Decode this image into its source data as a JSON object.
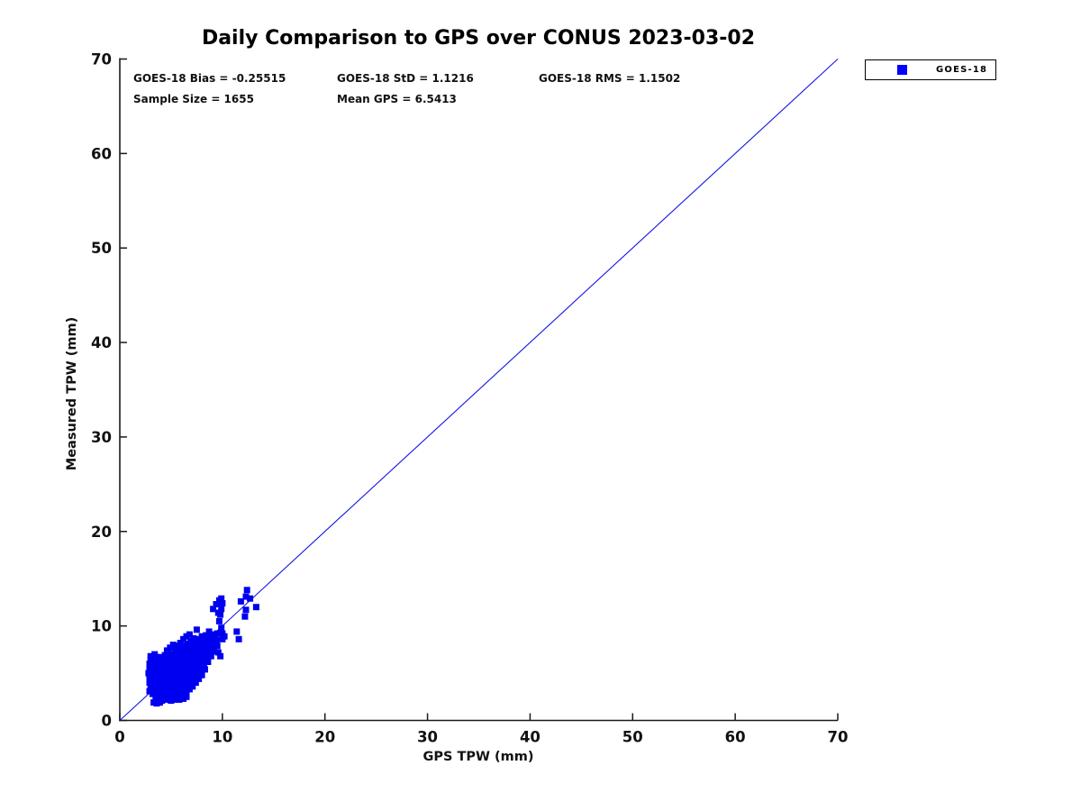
{
  "title": "Daily Comparison to GPS over CONUS 2023-03-02",
  "annotations": {
    "bias": "GOES-18 Bias = -0.25515",
    "std": "GOES-18 StD = 1.1216",
    "rms": "GOES-18 RMS = 1.1502",
    "sample_size": "Sample Size = 1655",
    "mean_gps": "Mean GPS = 6.5413"
  },
  "legend": {
    "position": "top-right-outside",
    "items": [
      {
        "label": "GOES-18",
        "marker": "square",
        "color": "#0000ff"
      }
    ]
  },
  "colors": {
    "marker": "#0000f0",
    "identity_line": "#1414e6",
    "axis": "#1a1a1a",
    "text": "#111111",
    "background": "#ffffff"
  },
  "chart_data": {
    "type": "scatter",
    "title": "Daily Comparison to GPS over CONUS 2023-03-02",
    "xlabel": "GPS TPW (mm)",
    "ylabel": "Measured TPW (mm)",
    "xlim": [
      0,
      70
    ],
    "ylim": [
      0,
      70
    ],
    "xticks": [
      0,
      10,
      20,
      30,
      40,
      50,
      60,
      70
    ],
    "yticks": [
      0,
      10,
      20,
      30,
      40,
      50,
      60,
      70
    ],
    "grid": false,
    "legend_position": "top-right-outside",
    "stats": {
      "bias": -0.25515,
      "std": 1.1216,
      "rms": 1.1502,
      "sample_size": 1655,
      "mean_gps": 6.5413
    },
    "reference_line": {
      "type": "identity",
      "from": [
        0,
        0
      ],
      "to": [
        70,
        70
      ]
    },
    "series": [
      {
        "name": "GOES-18",
        "marker": "square",
        "marker_size_px": 7,
        "color": "#0000f0",
        "points": [
          [
            2.8,
            5.0
          ],
          [
            2.9,
            5.5
          ],
          [
            2.9,
            6.0
          ],
          [
            3.0,
            6.4
          ],
          [
            2.9,
            3.1
          ],
          [
            2.9,
            4.0
          ],
          [
            2.9,
            4.5
          ],
          [
            3.0,
            3.5
          ],
          [
            3.0,
            6.8
          ],
          [
            3.4,
            7.0
          ],
          [
            3.2,
            6.6
          ],
          [
            3.2,
            2.8
          ],
          [
            3.2,
            3.3
          ],
          [
            3.1,
            3.8
          ],
          [
            3.2,
            4.3
          ],
          [
            3.3,
            4.8
          ],
          [
            3.2,
            5.3
          ],
          [
            3.3,
            5.8
          ],
          [
            3.2,
            6.2
          ],
          [
            3.5,
            2.5
          ],
          [
            3.4,
            3.0
          ],
          [
            3.5,
            3.5
          ],
          [
            3.6,
            4.0
          ],
          [
            3.5,
            4.5
          ],
          [
            3.4,
            5.0
          ],
          [
            3.5,
            5.5
          ],
          [
            3.6,
            6.0
          ],
          [
            3.5,
            6.4
          ],
          [
            3.8,
            2.2
          ],
          [
            3.7,
            2.8
          ],
          [
            3.8,
            3.3
          ],
          [
            3.9,
            3.8
          ],
          [
            3.8,
            4.3
          ],
          [
            3.7,
            4.8
          ],
          [
            3.8,
            5.3
          ],
          [
            3.9,
            5.8
          ],
          [
            3.8,
            6.3
          ],
          [
            3.8,
            6.7
          ],
          [
            4.1,
            2.1
          ],
          [
            4.0,
            2.7
          ],
          [
            4.1,
            3.2
          ],
          [
            4.2,
            3.7
          ],
          [
            4.1,
            4.2
          ],
          [
            4.0,
            4.7
          ],
          [
            4.1,
            5.2
          ],
          [
            4.2,
            5.7
          ],
          [
            4.1,
            6.2
          ],
          [
            4.0,
            6.6
          ],
          [
            4.4,
            2.4
          ],
          [
            4.3,
            2.9
          ],
          [
            4.4,
            3.4
          ],
          [
            4.5,
            3.9
          ],
          [
            4.4,
            4.4
          ],
          [
            4.3,
            4.9
          ],
          [
            4.4,
            5.4
          ],
          [
            4.5,
            5.9
          ],
          [
            4.4,
            6.4
          ],
          [
            4.4,
            6.9
          ],
          [
            4.7,
            2.3
          ],
          [
            4.6,
            2.8
          ],
          [
            4.7,
            3.3
          ],
          [
            4.8,
            3.8
          ],
          [
            4.7,
            4.3
          ],
          [
            4.6,
            4.8
          ],
          [
            4.7,
            5.3
          ],
          [
            4.8,
            5.8
          ],
          [
            4.7,
            6.3
          ],
          [
            4.6,
            7.4
          ],
          [
            4.7,
            7.1
          ],
          [
            5.0,
            2.5
          ],
          [
            4.9,
            3.0
          ],
          [
            5.0,
            3.5
          ],
          [
            5.1,
            4.0
          ],
          [
            5.0,
            4.5
          ],
          [
            4.9,
            5.0
          ],
          [
            5.0,
            5.5
          ],
          [
            5.1,
            6.0
          ],
          [
            5.0,
            6.5
          ],
          [
            5.0,
            7.0
          ],
          [
            4.9,
            7.7
          ],
          [
            5.3,
            2.4
          ],
          [
            5.2,
            2.9
          ],
          [
            5.3,
            3.4
          ],
          [
            5.4,
            3.9
          ],
          [
            5.3,
            4.4
          ],
          [
            5.2,
            4.9
          ],
          [
            5.3,
            5.4
          ],
          [
            5.4,
            5.9
          ],
          [
            5.3,
            6.4
          ],
          [
            5.3,
            6.9
          ],
          [
            5.4,
            7.6
          ],
          [
            5.2,
            8.0
          ],
          [
            5.6,
            2.6
          ],
          [
            5.5,
            3.1
          ],
          [
            5.6,
            3.6
          ],
          [
            5.7,
            4.1
          ],
          [
            5.6,
            4.6
          ],
          [
            5.5,
            5.1
          ],
          [
            5.6,
            5.6
          ],
          [
            5.7,
            6.1
          ],
          [
            5.6,
            6.6
          ],
          [
            5.6,
            7.1
          ],
          [
            5.7,
            7.9
          ],
          [
            5.9,
            2.4
          ],
          [
            5.8,
            2.9
          ],
          [
            5.9,
            3.4
          ],
          [
            6.0,
            3.9
          ],
          [
            5.9,
            4.4
          ],
          [
            5.8,
            4.9
          ],
          [
            5.9,
            5.4
          ],
          [
            6.0,
            5.9
          ],
          [
            5.9,
            6.4
          ],
          [
            5.9,
            6.9
          ],
          [
            6.0,
            7.4
          ],
          [
            5.9,
            8.2
          ],
          [
            6.2,
            2.7
          ],
          [
            6.1,
            3.2
          ],
          [
            6.2,
            3.7
          ],
          [
            6.3,
            4.2
          ],
          [
            6.2,
            4.7
          ],
          [
            6.1,
            5.2
          ],
          [
            6.2,
            5.7
          ],
          [
            6.3,
            6.2
          ],
          [
            6.2,
            6.7
          ],
          [
            6.2,
            7.2
          ],
          [
            6.3,
            7.9
          ],
          [
            6.2,
            8.6
          ],
          [
            6.5,
            2.9
          ],
          [
            6.4,
            3.4
          ],
          [
            6.5,
            3.9
          ],
          [
            6.6,
            4.4
          ],
          [
            6.5,
            4.9
          ],
          [
            6.4,
            5.4
          ],
          [
            6.5,
            5.9
          ],
          [
            6.6,
            6.4
          ],
          [
            6.5,
            6.9
          ],
          [
            6.5,
            7.4
          ],
          [
            6.6,
            8.1
          ],
          [
            6.5,
            8.9
          ],
          [
            6.8,
            3.3
          ],
          [
            6.7,
            3.8
          ],
          [
            6.8,
            4.3
          ],
          [
            6.9,
            4.8
          ],
          [
            6.8,
            5.3
          ],
          [
            6.7,
            5.8
          ],
          [
            6.8,
            6.3
          ],
          [
            6.9,
            6.8
          ],
          [
            6.8,
            7.3
          ],
          [
            6.8,
            7.8
          ],
          [
            6.9,
            8.4
          ],
          [
            6.8,
            9.1
          ],
          [
            7.1,
            3.6
          ],
          [
            7.0,
            4.1
          ],
          [
            7.1,
            4.6
          ],
          [
            7.2,
            5.1
          ],
          [
            7.1,
            5.6
          ],
          [
            7.0,
            6.1
          ],
          [
            7.1,
            6.6
          ],
          [
            7.2,
            7.1
          ],
          [
            7.1,
            7.6
          ],
          [
            7.1,
            8.1
          ],
          [
            7.2,
            8.7
          ],
          [
            7.5,
            9.6
          ],
          [
            7.4,
            4.0
          ],
          [
            7.3,
            4.5
          ],
          [
            7.4,
            5.0
          ],
          [
            7.5,
            5.5
          ],
          [
            7.4,
            6.0
          ],
          [
            7.3,
            6.5
          ],
          [
            7.4,
            7.0
          ],
          [
            7.5,
            7.5
          ],
          [
            7.4,
            8.0
          ],
          [
            7.4,
            8.6
          ],
          [
            7.7,
            4.4
          ],
          [
            7.6,
            4.9
          ],
          [
            7.7,
            5.4
          ],
          [
            7.8,
            5.9
          ],
          [
            7.7,
            6.4
          ],
          [
            7.6,
            6.9
          ],
          [
            7.7,
            7.4
          ],
          [
            7.8,
            7.9
          ],
          [
            7.7,
            8.5
          ],
          [
            8.0,
            4.8
          ],
          [
            7.9,
            5.3
          ],
          [
            8.0,
            5.8
          ],
          [
            8.1,
            6.3
          ],
          [
            8.0,
            6.8
          ],
          [
            7.9,
            7.3
          ],
          [
            8.0,
            7.8
          ],
          [
            8.1,
            8.3
          ],
          [
            8.0,
            8.9
          ],
          [
            8.3,
            5.4
          ],
          [
            8.2,
            5.9
          ],
          [
            8.3,
            6.4
          ],
          [
            8.4,
            6.9
          ],
          [
            8.3,
            7.4
          ],
          [
            8.2,
            7.9
          ],
          [
            8.3,
            8.4
          ],
          [
            8.4,
            9.0
          ],
          [
            8.6,
            6.2
          ],
          [
            8.5,
            6.7
          ],
          [
            8.6,
            7.2
          ],
          [
            8.7,
            7.7
          ],
          [
            8.6,
            8.2
          ],
          [
            8.6,
            8.8
          ],
          [
            8.7,
            9.4
          ],
          [
            8.9,
            6.8
          ],
          [
            8.8,
            7.3
          ],
          [
            8.9,
            7.8
          ],
          [
            9.0,
            8.3
          ],
          [
            8.9,
            9.0
          ],
          [
            9.2,
            7.3
          ],
          [
            9.1,
            7.8
          ],
          [
            9.2,
            8.4
          ],
          [
            9.3,
            9.1
          ],
          [
            9.5,
            7.9
          ],
          [
            9.4,
            8.5
          ],
          [
            9.5,
            9.2
          ],
          [
            4.6,
            2.2
          ],
          [
            5.0,
            2.1
          ],
          [
            5.4,
            2.2
          ],
          [
            5.8,
            2.2
          ],
          [
            6.2,
            2.3
          ],
          [
            6.5,
            2.5
          ],
          [
            3.3,
            1.9
          ],
          [
            3.6,
            1.8
          ],
          [
            3.9,
            1.9
          ],
          [
            9.9,
            12.9
          ],
          [
            10.0,
            12.4
          ],
          [
            9.9,
            11.8
          ],
          [
            9.8,
            11.2
          ],
          [
            9.7,
            10.5
          ],
          [
            9.9,
            9.8
          ],
          [
            10.0,
            9.2
          ],
          [
            10.2,
            8.9
          ],
          [
            9.6,
            11.4
          ],
          [
            9.1,
            11.8
          ],
          [
            9.4,
            12.3
          ],
          [
            9.7,
            12.7
          ],
          [
            10.0,
            8.6
          ],
          [
            9.8,
            6.8
          ],
          [
            9.6,
            7.2
          ],
          [
            11.4,
            9.4
          ],
          [
            11.6,
            8.6
          ],
          [
            11.8,
            12.6
          ],
          [
            12.2,
            11.0
          ],
          [
            12.3,
            11.7
          ],
          [
            12.3,
            13.1
          ],
          [
            12.4,
            13.8
          ],
          [
            12.7,
            12.9
          ],
          [
            13.3,
            12.0
          ]
        ]
      }
    ]
  }
}
